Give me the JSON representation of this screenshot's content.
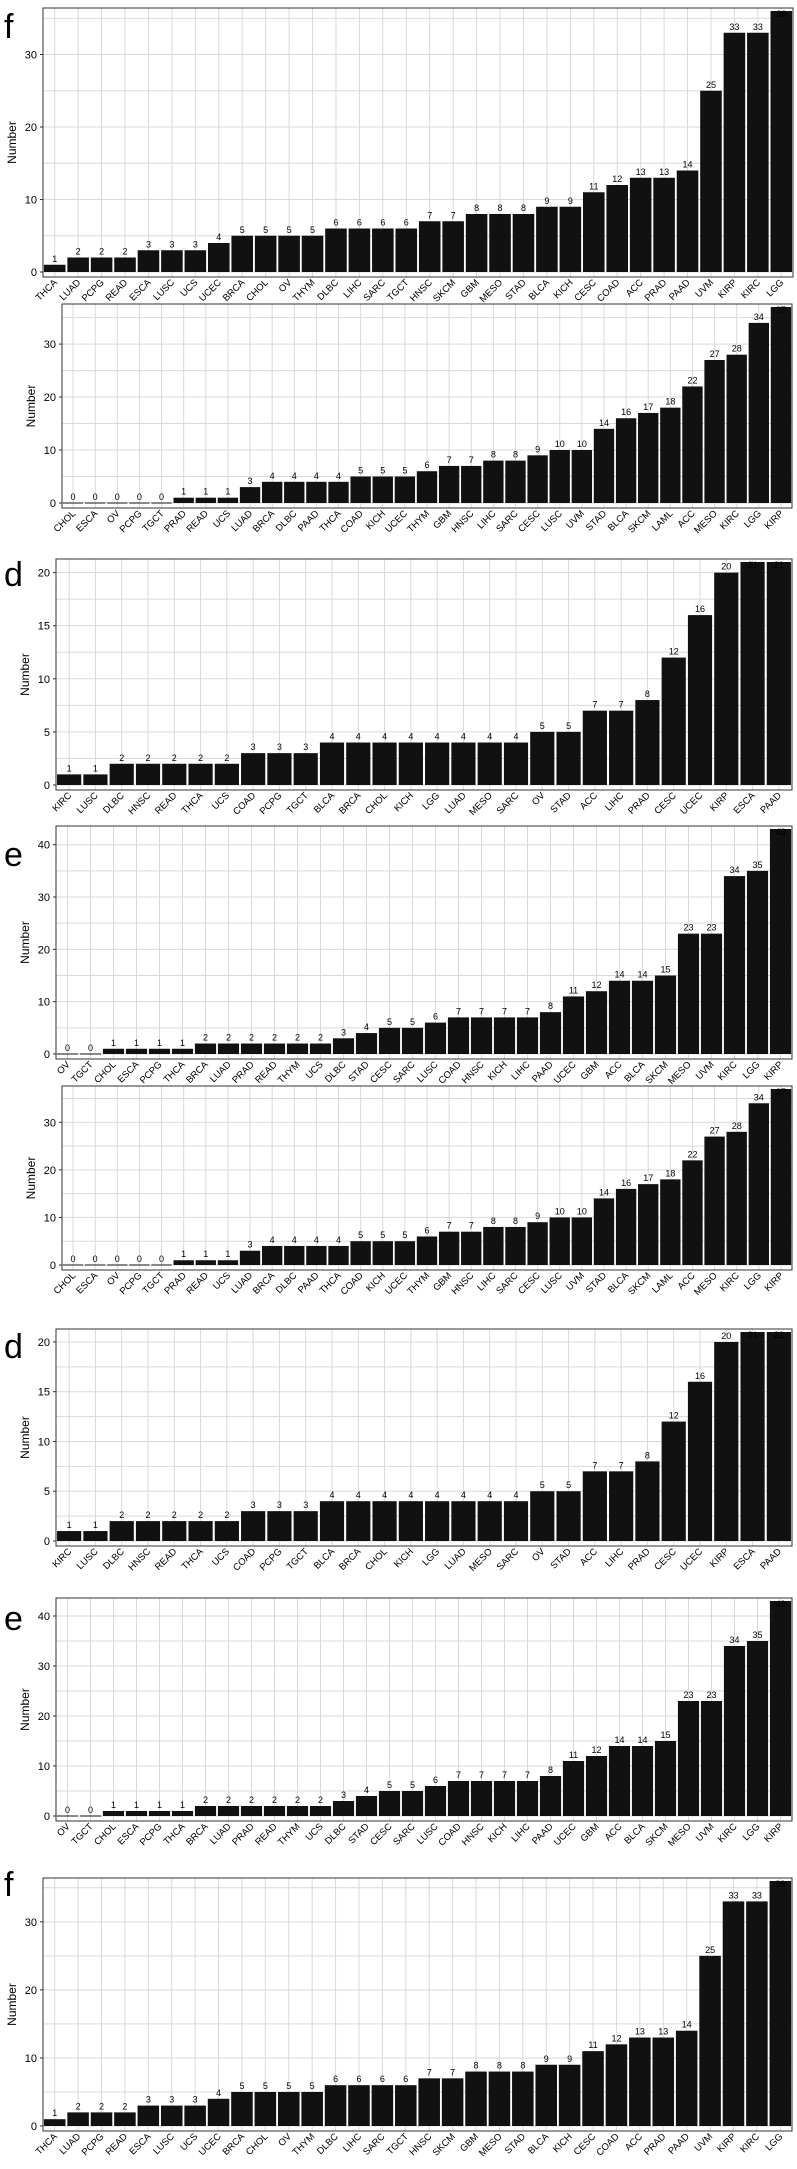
{
  "chart_data": [
    {
      "type": "bar",
      "panel_label": "f",
      "ylabel": "Number",
      "ylim": [
        0,
        36
      ],
      "yticks": [
        0,
        10,
        20,
        30
      ],
      "categories": [
        "THCA",
        "LUAD",
        "PCPG",
        "READ",
        "ESCA",
        "LUSC",
        "UCS",
        "UCEC",
        "BRCA",
        "CHOL",
        "OV",
        "THYM",
        "DLBC",
        "LIHC",
        "SARC",
        "TGCT",
        "HNSC",
        "SKCM",
        "GBM",
        "MESO",
        "STAD",
        "BLCA",
        "KICH",
        "CESC",
        "COAD",
        "ACC",
        "PRAD",
        "PAAD",
        "UVM",
        "KIRP",
        "KIRC",
        "LGG"
      ],
      "values": [
        1,
        2,
        2,
        2,
        3,
        3,
        3,
        4,
        5,
        5,
        5,
        5,
        6,
        6,
        6,
        6,
        7,
        7,
        8,
        8,
        8,
        9,
        9,
        11,
        12,
        13,
        13,
        14,
        25,
        33,
        33,
        36
      ]
    },
    {
      "type": "bar",
      "panel_label": "",
      "ylabel": "Number",
      "ylim": [
        0,
        37
      ],
      "yticks": [
        0,
        10,
        20,
        30
      ],
      "categories": [
        "CHOL",
        "ESCA",
        "OV",
        "PCPG",
        "TGCT",
        "PRAD",
        "READ",
        "UCS",
        "LUAD",
        "BRCA",
        "DLBC",
        "PAAD",
        "THCA",
        "COAD",
        "KICH",
        "UCEC",
        "THYM",
        "GBM",
        "HNSC",
        "LIHC",
        "SARC",
        "CESC",
        "LUSC",
        "UVM",
        "STAD",
        "BLCA",
        "SKCM",
        "LAML",
        "ACC",
        "MESO",
        "KIRC",
        "LGG",
        "KIRP"
      ],
      "values": [
        0,
        0,
        0,
        0,
        0,
        1,
        1,
        1,
        3,
        4,
        4,
        4,
        4,
        5,
        5,
        5,
        6,
        7,
        7,
        8,
        8,
        9,
        10,
        10,
        14,
        16,
        17,
        18,
        22,
        27,
        28,
        34,
        37
      ]
    },
    {
      "type": "bar",
      "panel_label": "d",
      "ylabel": "Number",
      "ylim": [
        0,
        21
      ],
      "yticks": [
        0,
        5,
        10,
        15,
        20
      ],
      "categories": [
        "KIRC",
        "LUSC",
        "DLBC",
        "HNSC",
        "READ",
        "THCA",
        "UCS",
        "COAD",
        "PCPG",
        "TGCT",
        "BLCA",
        "BRCA",
        "CHOL",
        "KICH",
        "LGG",
        "LUAD",
        "MESO",
        "SARC",
        "OV",
        "STAD",
        "ACC",
        "LIHC",
        "PRAD",
        "CESC",
        "UCEC",
        "KIRP",
        "ESCA",
        "PAAD"
      ],
      "values": [
        1,
        1,
        2,
        2,
        2,
        2,
        2,
        3,
        3,
        3,
        4,
        4,
        4,
        4,
        4,
        4,
        4,
        4,
        5,
        5,
        7,
        7,
        8,
        12,
        16,
        20,
        21,
        21
      ]
    },
    {
      "type": "bar",
      "panel_label": "e",
      "ylabel": "Number",
      "ylim": [
        0,
        43
      ],
      "yticks": [
        0,
        10,
        20,
        30,
        40
      ],
      "categories": [
        "OV",
        "TGCT",
        "CHOL",
        "ESCA",
        "PCPG",
        "THCA",
        "BRCA",
        "LUAD",
        "PRAD",
        "READ",
        "THYM",
        "UCS",
        "DLBC",
        "STAD",
        "CESC",
        "SARC",
        "LUSC",
        "COAD",
        "HNSC",
        "KICH",
        "LIHC",
        "PAAD",
        "UCEC",
        "GBM",
        "ACC",
        "BLCA",
        "SKCM",
        "MESO",
        "UVM",
        "KIRC",
        "LGG",
        "KIRP"
      ],
      "values": [
        0,
        0,
        1,
        1,
        1,
        1,
        2,
        2,
        2,
        2,
        2,
        2,
        3,
        4,
        5,
        5,
        6,
        7,
        7,
        7,
        7,
        8,
        11,
        12,
        14,
        14,
        15,
        23,
        23,
        34,
        35,
        43
      ]
    },
    {
      "type": "bar",
      "panel_label": "",
      "ylabel": "Number",
      "ylim": [
        0,
        37
      ],
      "yticks": [
        0,
        10,
        20,
        30
      ],
      "categories": [
        "CHOL",
        "ESCA",
        "OV",
        "PCPG",
        "TGCT",
        "PRAD",
        "READ",
        "UCS",
        "LUAD",
        "BRCA",
        "DLBC",
        "PAAD",
        "THCA",
        "COAD",
        "KICH",
        "UCEC",
        "THYM",
        "GBM",
        "HNSC",
        "LIHC",
        "SARC",
        "CESC",
        "LUSC",
        "UVM",
        "STAD",
        "BLCA",
        "SKCM",
        "LAML",
        "ACC",
        "MESO",
        "KIRC",
        "LGG",
        "KIRP"
      ],
      "values": [
        0,
        0,
        0,
        0,
        0,
        1,
        1,
        1,
        3,
        4,
        4,
        4,
        4,
        5,
        5,
        5,
        6,
        7,
        7,
        8,
        8,
        9,
        10,
        10,
        14,
        16,
        17,
        18,
        22,
        27,
        28,
        34,
        37
      ]
    },
    {
      "type": "bar",
      "panel_label": "d",
      "ylabel": "Number",
      "ylim": [
        0,
        21
      ],
      "yticks": [
        0,
        5,
        10,
        15,
        20
      ],
      "categories": [
        "KIRC",
        "LUSC",
        "DLBC",
        "HNSC",
        "READ",
        "THCA",
        "UCS",
        "COAD",
        "PCPG",
        "TGCT",
        "BLCA",
        "BRCA",
        "CHOL",
        "KICH",
        "LGG",
        "LUAD",
        "MESO",
        "SARC",
        "OV",
        "STAD",
        "ACC",
        "LIHC",
        "PRAD",
        "CESC",
        "UCEC",
        "KIRP",
        "ESCA",
        "PAAD"
      ],
      "values": [
        1,
        1,
        2,
        2,
        2,
        2,
        2,
        3,
        3,
        3,
        4,
        4,
        4,
        4,
        4,
        4,
        4,
        4,
        5,
        5,
        7,
        7,
        8,
        12,
        16,
        20,
        21,
        21
      ]
    },
    {
      "type": "bar",
      "panel_label": "e",
      "ylabel": "Number",
      "ylim": [
        0,
        43
      ],
      "yticks": [
        0,
        10,
        20,
        30,
        40
      ],
      "categories": [
        "OV",
        "TGCT",
        "CHOL",
        "ESCA",
        "PCPG",
        "THCA",
        "BRCA",
        "LUAD",
        "PRAD",
        "READ",
        "THYM",
        "UCS",
        "DLBC",
        "STAD",
        "CESC",
        "SARC",
        "LUSC",
        "COAD",
        "HNSC",
        "KICH",
        "LIHC",
        "PAAD",
        "UCEC",
        "GBM",
        "ACC",
        "BLCA",
        "SKCM",
        "MESO",
        "UVM",
        "KIRC",
        "LGG",
        "KIRP"
      ],
      "values": [
        0,
        0,
        1,
        1,
        1,
        1,
        2,
        2,
        2,
        2,
        2,
        2,
        3,
        4,
        5,
        5,
        6,
        7,
        7,
        7,
        7,
        8,
        11,
        12,
        14,
        14,
        15,
        23,
        23,
        34,
        35,
        43
      ]
    },
    {
      "type": "bar",
      "panel_label": "f",
      "ylabel": "Number",
      "ylim": [
        0,
        36
      ],
      "yticks": [
        0,
        10,
        20,
        30
      ],
      "categories": [
        "THCA",
        "LUAD",
        "PCPG",
        "READ",
        "ESCA",
        "LUSC",
        "UCS",
        "UCEC",
        "BRCA",
        "CHOL",
        "OV",
        "THYM",
        "DLBC",
        "LIHC",
        "SARC",
        "TGCT",
        "HNSC",
        "SKCM",
        "GBM",
        "MESO",
        "STAD",
        "BLCA",
        "KICH",
        "CESC",
        "COAD",
        "ACC",
        "PRAD",
        "PAAD",
        "UVM",
        "KIRP",
        "KIRC",
        "LGG"
      ],
      "values": [
        1,
        2,
        2,
        2,
        3,
        3,
        3,
        4,
        5,
        5,
        5,
        5,
        6,
        6,
        6,
        6,
        7,
        7,
        8,
        8,
        8,
        9,
        9,
        11,
        12,
        13,
        13,
        14,
        25,
        33,
        33,
        36
      ]
    }
  ]
}
